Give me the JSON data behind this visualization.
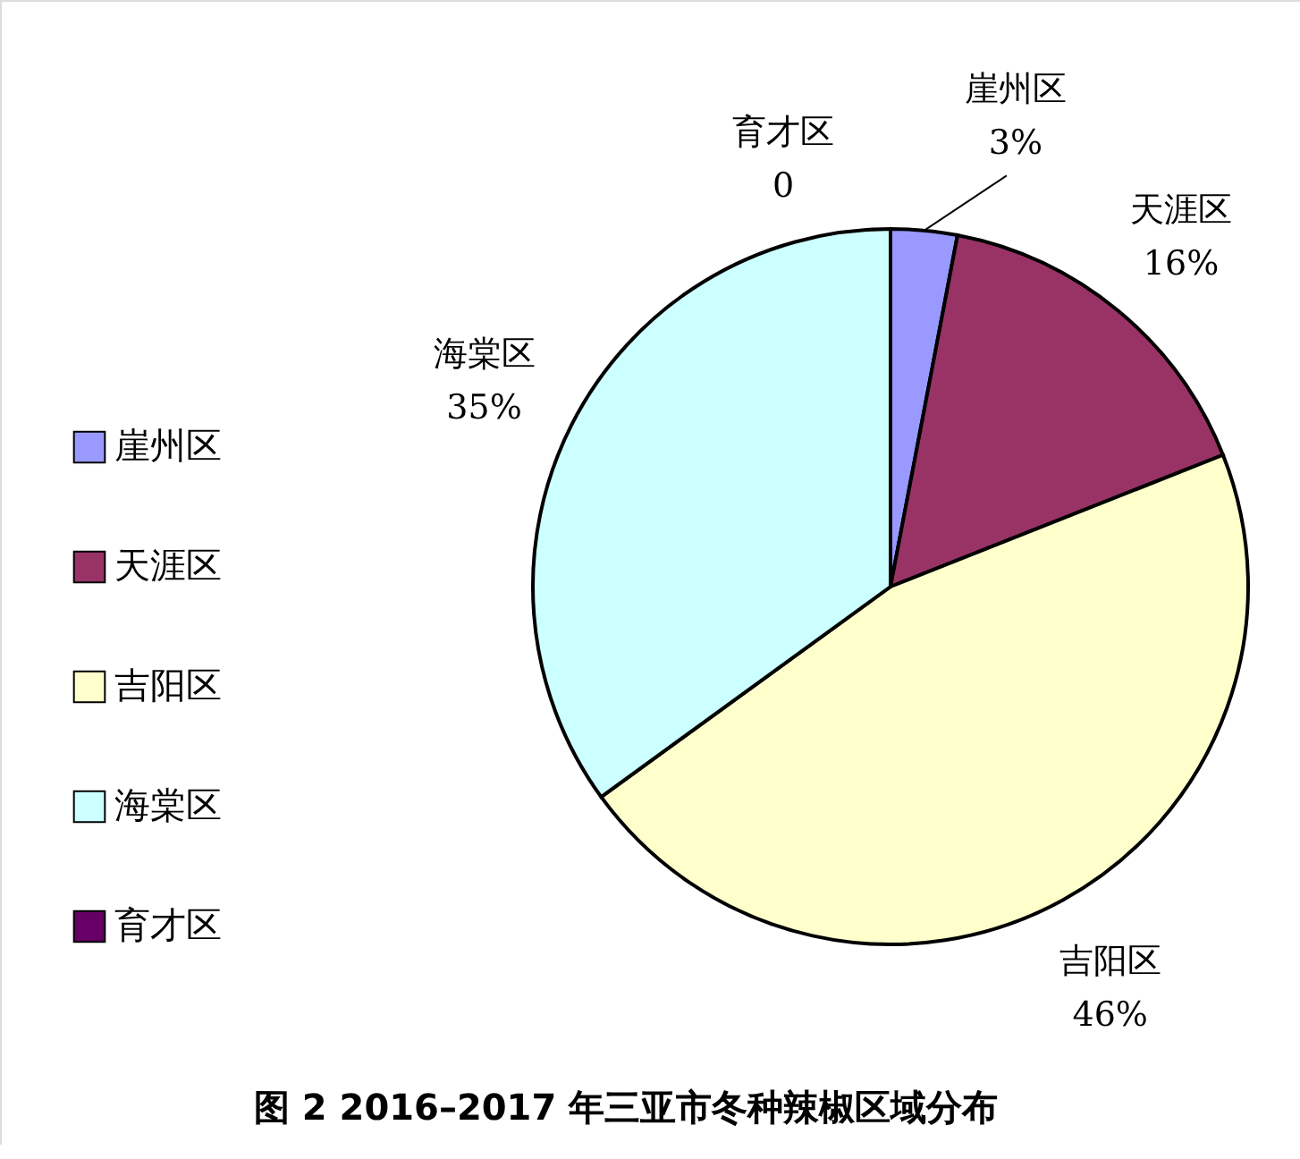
{
  "chart_data": {
    "type": "pie",
    "title": "图 2   2016–2017 年三亚市冬种辣椒区域分布",
    "categories": [
      "崖州区",
      "天涯区",
      "吉阳区",
      "海棠区",
      "育才区"
    ],
    "values": [
      3,
      16,
      46,
      35,
      0
    ],
    "value_labels": [
      "3%",
      "16%",
      "46%",
      "35%",
      "0"
    ],
    "colors": [
      "#9999ff",
      "#993366",
      "#ffffcc",
      "#ccffff",
      "#660066"
    ],
    "legend": "left"
  }
}
